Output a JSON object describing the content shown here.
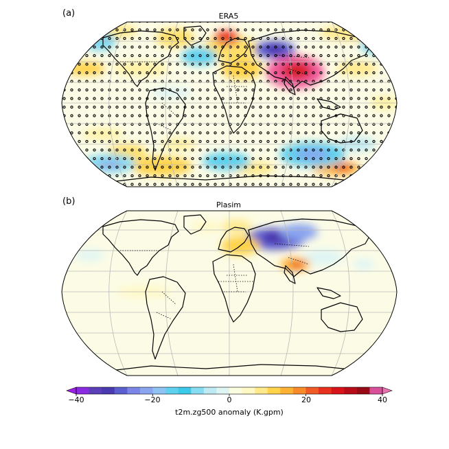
{
  "panels": [
    {
      "letter": "(a)",
      "title": "ERA5",
      "stippling": true
    },
    {
      "letter": "(b)",
      "title": "Plasim",
      "stippling": false
    }
  ],
  "colorbar": {
    "label": "t2m.zg500 anomaly (K.gpm)",
    "min": -40,
    "max": 40,
    "ticks": [
      "−40",
      "−20",
      "0",
      "20",
      "40"
    ],
    "tick_values": [
      -40,
      -20,
      0,
      20,
      40
    ],
    "extend": "both",
    "colors": [
      "#8a2be2",
      "#5a3fb6",
      "#4a3ab0",
      "#5b5fd0",
      "#7b86e6",
      "#8aa4f0",
      "#8fc3f3",
      "#5fd0ee",
      "#3cc8e8",
      "#86dcf0",
      "#bfeaf3",
      "#dff5f4",
      "#fbfde0",
      "#fff8c4",
      "#ffe98a",
      "#ffd34a",
      "#fdb233",
      "#f88a2a",
      "#f05a24",
      "#e8301f",
      "#d8141a",
      "#b80d18",
      "#980a15",
      "#d8509a"
    ]
  },
  "projection": "Robinson",
  "colors": {
    "ocean_background": "#fcfce6",
    "coast": "#000000",
    "grid": "#b8b8b8"
  }
}
